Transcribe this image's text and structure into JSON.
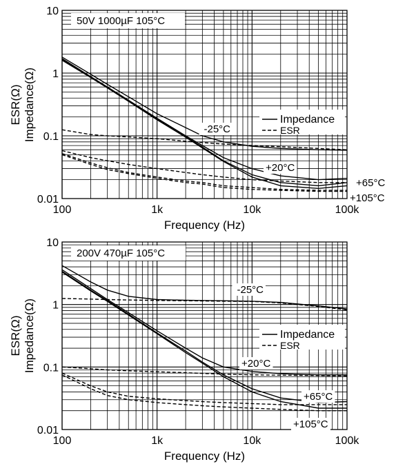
{
  "chart_data": [
    {
      "type": "line",
      "title": "50V 1000µF 105°C",
      "xlabel": "Frequency (Hz)",
      "ylabel_lines": [
        "ESR(Ω)",
        "Impedance(Ω)"
      ],
      "x_scale": "log",
      "y_scale": "log",
      "xlim": [
        100,
        100000
      ],
      "ylim": [
        0.01,
        10
      ],
      "x_ticks": [
        {
          "value": 100,
          "label": "100"
        },
        {
          "value": 1000,
          "label": "1k"
        },
        {
          "value": 10000,
          "label": "10k"
        },
        {
          "value": 100000,
          "label": "100k"
        }
      ],
      "y_ticks": [
        {
          "value": 0.01,
          "label": "0.01"
        },
        {
          "value": 0.1,
          "label": "0.1"
        },
        {
          "value": 1,
          "label": "1"
        },
        {
          "value": 10,
          "label": "10"
        }
      ],
      "grid": true,
      "legend": {
        "position": "right",
        "entries": [
          {
            "style": "solid",
            "label": "Impedance"
          },
          {
            "style": "dashed",
            "label": "ESR"
          }
        ]
      },
      "series": [
        {
          "kind": "Impedance",
          "temp": "-25°C",
          "style": "solid",
          "x": [
            100,
            200,
            300,
            500,
            1000,
            2000,
            3000,
            5000,
            10000,
            20000,
            50000,
            100000
          ],
          "y": [
            1.8,
            0.96,
            0.66,
            0.42,
            0.225,
            0.135,
            0.1,
            0.08,
            0.068,
            0.063,
            0.06,
            0.059
          ]
        },
        {
          "kind": "Impedance",
          "temp": "+20°C",
          "style": "solid",
          "x": [
            100,
            200,
            300,
            500,
            1000,
            2000,
            3000,
            5000,
            10000,
            20000,
            50000,
            100000
          ],
          "y": [
            1.7,
            0.88,
            0.6,
            0.37,
            0.19,
            0.1,
            0.07,
            0.045,
            0.03,
            0.023,
            0.02,
            0.021
          ]
        },
        {
          "kind": "Impedance",
          "temp": "+65°C",
          "style": "solid",
          "x": [
            100,
            200,
            300,
            500,
            1000,
            2000,
            3000,
            5000,
            10000,
            20000,
            50000,
            100000
          ],
          "y": [
            1.65,
            0.86,
            0.59,
            0.36,
            0.185,
            0.097,
            0.066,
            0.04,
            0.024,
            0.018,
            0.016,
            0.018
          ]
        },
        {
          "kind": "Impedance",
          "temp": "+105°C",
          "style": "solid",
          "x": [
            100,
            200,
            300,
            500,
            1000,
            2000,
            3000,
            5000,
            10000,
            20000,
            50000,
            100000
          ],
          "y": [
            1.6,
            0.85,
            0.58,
            0.355,
            0.18,
            0.095,
            0.064,
            0.039,
            0.022,
            0.016,
            0.0145,
            0.016
          ]
        },
        {
          "kind": "ESR",
          "temp": "-25°C",
          "style": "dashed",
          "x": [
            100,
            200,
            300,
            500,
            1000,
            2000,
            3000,
            5000,
            10000,
            20000,
            50000,
            100000
          ],
          "y": [
            0.125,
            0.105,
            0.1,
            0.096,
            0.09,
            0.082,
            0.078,
            0.074,
            0.07,
            0.067,
            0.063,
            0.06
          ]
        },
        {
          "kind": "ESR",
          "temp": "+20°C",
          "style": "dashed",
          "x": [
            100,
            200,
            300,
            500,
            1000,
            2000,
            3000,
            5000,
            10000,
            20000,
            50000,
            100000
          ],
          "y": [
            0.058,
            0.045,
            0.04,
            0.035,
            0.03,
            0.026,
            0.024,
            0.022,
            0.02,
            0.019,
            0.018,
            0.018
          ]
        },
        {
          "kind": "ESR",
          "temp": "+65°C",
          "style": "dashed",
          "x": [
            100,
            200,
            300,
            500,
            1000,
            2000,
            3000,
            5000,
            10000,
            20000,
            50000,
            100000
          ],
          "y": [
            0.052,
            0.037,
            0.031,
            0.026,
            0.022,
            0.019,
            0.018,
            0.016,
            0.015,
            0.014,
            0.0135,
            0.0135
          ]
        },
        {
          "kind": "ESR",
          "temp": "+105°C",
          "style": "dashed",
          "x": [
            100,
            200,
            300,
            500,
            1000,
            2000,
            3000,
            5000,
            10000,
            20000,
            50000,
            100000
          ],
          "y": [
            0.05,
            0.035,
            0.029,
            0.025,
            0.021,
            0.018,
            0.017,
            0.015,
            0.014,
            0.0135,
            0.013,
            0.013
          ]
        }
      ],
      "annotations": [
        "-25°C",
        "+20°C",
        "+65°C",
        "+105°C"
      ]
    },
    {
      "type": "line",
      "title": "200V 470µF 105°C",
      "xlabel": "Frequency (Hz)",
      "ylabel_lines": [
        "ESR(Ω)",
        "Impedance(Ω)"
      ],
      "x_scale": "log",
      "y_scale": "log",
      "xlim": [
        100,
        100000
      ],
      "ylim": [
        0.01,
        10
      ],
      "x_ticks": [
        {
          "value": 100,
          "label": "100"
        },
        {
          "value": 1000,
          "label": "1k"
        },
        {
          "value": 10000,
          "label": "10k"
        },
        {
          "value": 100000,
          "label": "100k"
        }
      ],
      "y_ticks": [
        {
          "value": 0.01,
          "label": "0.01"
        },
        {
          "value": 0.1,
          "label": "0.1"
        },
        {
          "value": 1,
          "label": "1"
        },
        {
          "value": 10,
          "label": "10"
        }
      ],
      "grid": true,
      "legend": {
        "position": "right",
        "entries": [
          {
            "style": "solid",
            "label": "Impedance"
          },
          {
            "style": "dashed",
            "label": "ESR"
          }
        ]
      },
      "series": [
        {
          "kind": "Impedance",
          "temp": "-25°C",
          "style": "solid",
          "x": [
            100,
            200,
            300,
            500,
            1000,
            2000,
            3000,
            5000,
            10000,
            20000,
            50000,
            100000
          ],
          "y": [
            4.2,
            2.3,
            1.7,
            1.35,
            1.2,
            1.17,
            1.16,
            1.15,
            1.13,
            1.08,
            0.95,
            0.85
          ]
        },
        {
          "kind": "Impedance",
          "temp": "+20°C",
          "style": "solid",
          "x": [
            100,
            200,
            300,
            500,
            1000,
            2000,
            3000,
            5000,
            10000,
            20000,
            50000,
            100000
          ],
          "y": [
            3.6,
            1.8,
            1.2,
            0.74,
            0.38,
            0.2,
            0.14,
            0.1,
            0.085,
            0.078,
            0.075,
            0.075
          ]
        },
        {
          "kind": "Impedance",
          "temp": "+65°C",
          "style": "solid",
          "x": [
            100,
            200,
            300,
            500,
            1000,
            2000,
            3000,
            5000,
            10000,
            20000,
            50000,
            100000
          ],
          "y": [
            3.4,
            1.7,
            1.15,
            0.7,
            0.35,
            0.18,
            0.12,
            0.075,
            0.045,
            0.032,
            0.027,
            0.028
          ]
        },
        {
          "kind": "Impedance",
          "temp": "+105°C",
          "style": "solid",
          "x": [
            100,
            200,
            300,
            500,
            1000,
            2000,
            3000,
            5000,
            10000,
            20000,
            50000,
            100000
          ],
          "y": [
            3.3,
            1.65,
            1.12,
            0.68,
            0.34,
            0.17,
            0.115,
            0.07,
            0.04,
            0.028,
            0.022,
            0.022
          ]
        },
        {
          "kind": "ESR",
          "temp": "-25°C",
          "style": "dashed",
          "x": [
            100,
            200,
            300,
            500,
            1000,
            2000,
            3000,
            5000,
            10000,
            20000,
            50000,
            100000
          ],
          "y": [
            1.25,
            1.22,
            1.2,
            1.18,
            1.16,
            1.15,
            1.14,
            1.13,
            1.12,
            1.06,
            0.93,
            0.82
          ]
        },
        {
          "kind": "ESR",
          "temp": "+20°C",
          "style": "dashed",
          "x": [
            100,
            200,
            300,
            500,
            1000,
            2000,
            3000,
            5000,
            10000,
            20000,
            50000,
            100000
          ],
          "y": [
            0.1,
            0.094,
            0.09,
            0.087,
            0.084,
            0.081,
            0.079,
            0.077,
            0.075,
            0.074,
            0.073,
            0.072
          ]
        },
        {
          "kind": "ESR",
          "temp": "+65°C",
          "style": "dashed",
          "x": [
            100,
            200,
            300,
            500,
            1000,
            2000,
            3000,
            5000,
            10000,
            20000,
            50000,
            100000
          ],
          "y": [
            0.08,
            0.05,
            0.04,
            0.034,
            0.031,
            0.029,
            0.028,
            0.027,
            0.026,
            0.025,
            0.025,
            0.025
          ]
        },
        {
          "kind": "ESR",
          "temp": "+105°C",
          "style": "dashed",
          "x": [
            100,
            200,
            300,
            500,
            1000,
            2000,
            3000,
            5000,
            10000,
            20000,
            50000,
            100000
          ],
          "y": [
            0.075,
            0.045,
            0.035,
            0.03,
            0.027,
            0.025,
            0.024,
            0.023,
            0.022,
            0.021,
            0.02,
            0.02
          ]
        }
      ],
      "annotations": [
        "-25°C",
        "+20°C",
        "+65°C",
        "+105°C"
      ]
    }
  ]
}
